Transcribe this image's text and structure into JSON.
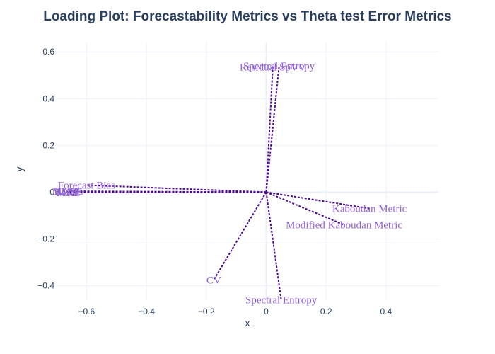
{
  "chart_data": {
    "type": "scatter",
    "title": "Loading Plot: Forecastability Metrics vs Theta test Error Metrics",
    "xlabel": "x",
    "ylabel": "y",
    "xlim": [
      -0.7,
      0.575
    ],
    "ylim": [
      -0.465,
      0.64
    ],
    "x_ticks": [
      -0.6,
      -0.4,
      -0.2,
      0,
      0.2,
      0.4
    ],
    "x_tick_labels": [
      "−0.6",
      "−0.4",
      "−0.2",
      "0",
      "0.2",
      "0.4"
    ],
    "y_ticks": [
      -0.4,
      -0.2,
      0,
      0.2,
      0.4,
      0.6
    ],
    "y_tick_labels": [
      "−0.4",
      "−0.2",
      "0",
      "0.2",
      "0.4",
      "0.6"
    ],
    "grid": true,
    "line_color": "#4b0a8c",
    "label_color": "#9161d6",
    "vectors": [
      {
        "label": "MASE",
        "x": -0.665,
        "y": 0.002
      },
      {
        "label": "RMSE",
        "x": -0.66,
        "y": 0.004
      },
      {
        "label": "MAE",
        "x": -0.66,
        "y": 0.0
      },
      {
        "label": "MSE",
        "x": -0.665,
        "y": -0.002
      },
      {
        "label": "Forecast Bias",
        "x": -0.6,
        "y": 0.03
      },
      {
        "label": "Residual SpVV",
        "x": 0.022,
        "y": 0.535
      },
      {
        "label": "Spectral Entropy",
        "x": 0.043,
        "y": 0.54
      },
      {
        "label": "Kaboudan Metric",
        "x": 0.345,
        "y": -0.07
      },
      {
        "label": "Modified Kaboudan Metric",
        "x": 0.26,
        "y": -0.14
      },
      {
        "label": "CV",
        "x": -0.175,
        "y": -0.375
      },
      {
        "label": "Spectral Entropy",
        "x": 0.05,
        "y": -0.46
      }
    ]
  }
}
